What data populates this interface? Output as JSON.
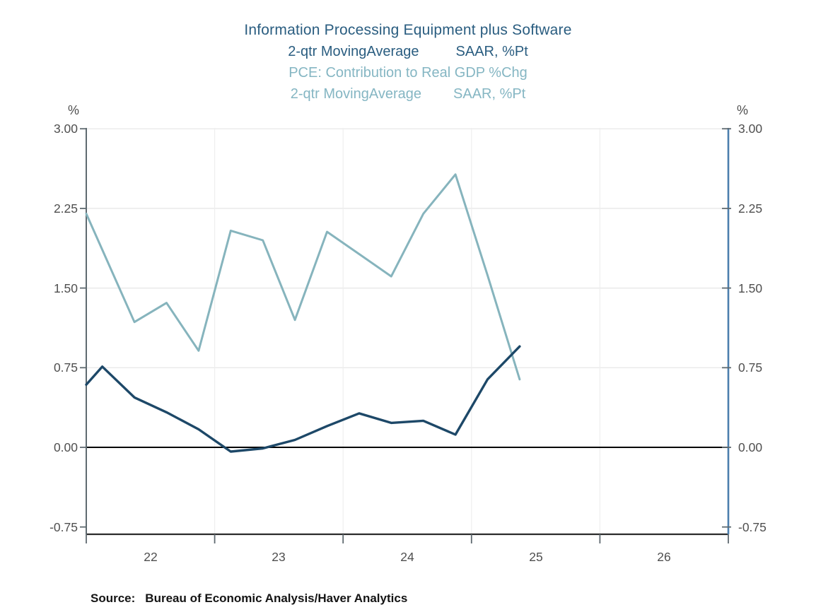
{
  "chart_data": {
    "type": "line",
    "title": "Information Processing Equipment plus Software",
    "title_line2": {
      "left": "2-qtr MovingAverage",
      "right": "SAAR, %Pt"
    },
    "title_color": "#2a5d80",
    "subtitle": "PCE: Contribution to Real GDP %Chg",
    "subtitle_line2": {
      "left": "2-qtr MovingAverage",
      "right": "SAAR, %Pt"
    },
    "subtitle_color": "#85b6c3",
    "x_axis": {
      "unit": "year",
      "range": [
        2022,
        2027
      ],
      "tick_years": [
        2022,
        2023,
        2024,
        2025,
        2026,
        2027
      ],
      "gridline_years": [
        2023,
        2024,
        2025,
        2026
      ],
      "labels": [
        {
          "position": 2022.5,
          "text": "22"
        },
        {
          "position": 2023.5,
          "text": "23"
        },
        {
          "position": 2024.5,
          "text": "24"
        },
        {
          "position": 2025.5,
          "text": "25"
        },
        {
          "position": 2026.5,
          "text": "26"
        }
      ]
    },
    "y_axis": {
      "unit": "%",
      "range": [
        -0.82,
        3.0
      ],
      "ticks": [
        {
          "value": 3.0,
          "label": "3.00"
        },
        {
          "value": 2.25,
          "label": "2.25"
        },
        {
          "value": 1.5,
          "label": "1.50"
        },
        {
          "value": 0.75,
          "label": "0.75"
        },
        {
          "value": 0.0,
          "label": "0.00"
        },
        {
          "value": -0.75,
          "label": "-0.75"
        }
      ],
      "gridline_values": [
        3.0,
        2.25,
        1.5,
        0.75
      ],
      "zero_line": true,
      "sides": [
        "left",
        "right"
      ]
    },
    "axis_colors": {
      "left_axis": "#5f6a70",
      "right_axis": "#4c7fad",
      "bottom_axis": "#2b2b2b",
      "zero_line": "#000000",
      "gridline": "#e6e6e6",
      "tick": "#5f6a70",
      "tick_label": "#4f4f4f"
    },
    "series": [
      {
        "name": "PCE: Contribution to Real GDP %Chg, 2-qtr MovingAverage, SAAR, %Pt",
        "color": "#86b4bd",
        "width": 3.0,
        "points": [
          [
            2022.0,
            2.2
          ],
          [
            2022.125,
            1.86
          ],
          [
            2022.375,
            1.18
          ],
          [
            2022.625,
            1.36
          ],
          [
            2022.875,
            0.91
          ],
          [
            2023.125,
            2.04
          ],
          [
            2023.375,
            1.95
          ],
          [
            2023.625,
            1.2
          ],
          [
            2023.875,
            2.03
          ],
          [
            2024.125,
            1.82
          ],
          [
            2024.375,
            1.61
          ],
          [
            2024.625,
            2.2
          ],
          [
            2024.875,
            2.57
          ],
          [
            2025.125,
            1.62
          ],
          [
            2025.375,
            0.64
          ]
        ]
      },
      {
        "name": "Information Processing Equipment plus Software, 2-qtr MovingAverage, SAAR, %Pt",
        "color": "#1d4868",
        "width": 3.4,
        "points": [
          [
            2022.0,
            0.59
          ],
          [
            2022.125,
            0.76
          ],
          [
            2022.375,
            0.47
          ],
          [
            2022.625,
            0.33
          ],
          [
            2022.875,
            0.17
          ],
          [
            2023.125,
            -0.04
          ],
          [
            2023.375,
            -0.01
          ],
          [
            2023.625,
            0.07
          ],
          [
            2023.875,
            0.2
          ],
          [
            2024.125,
            0.32
          ],
          [
            2024.375,
            0.23
          ],
          [
            2024.625,
            0.25
          ],
          [
            2024.875,
            0.12
          ],
          [
            2025.125,
            0.64
          ],
          [
            2025.375,
            0.95
          ]
        ]
      }
    ],
    "source": {
      "prefix": "Source:",
      "text": "Bureau of Economic Analysis/Haver Analytics"
    }
  }
}
